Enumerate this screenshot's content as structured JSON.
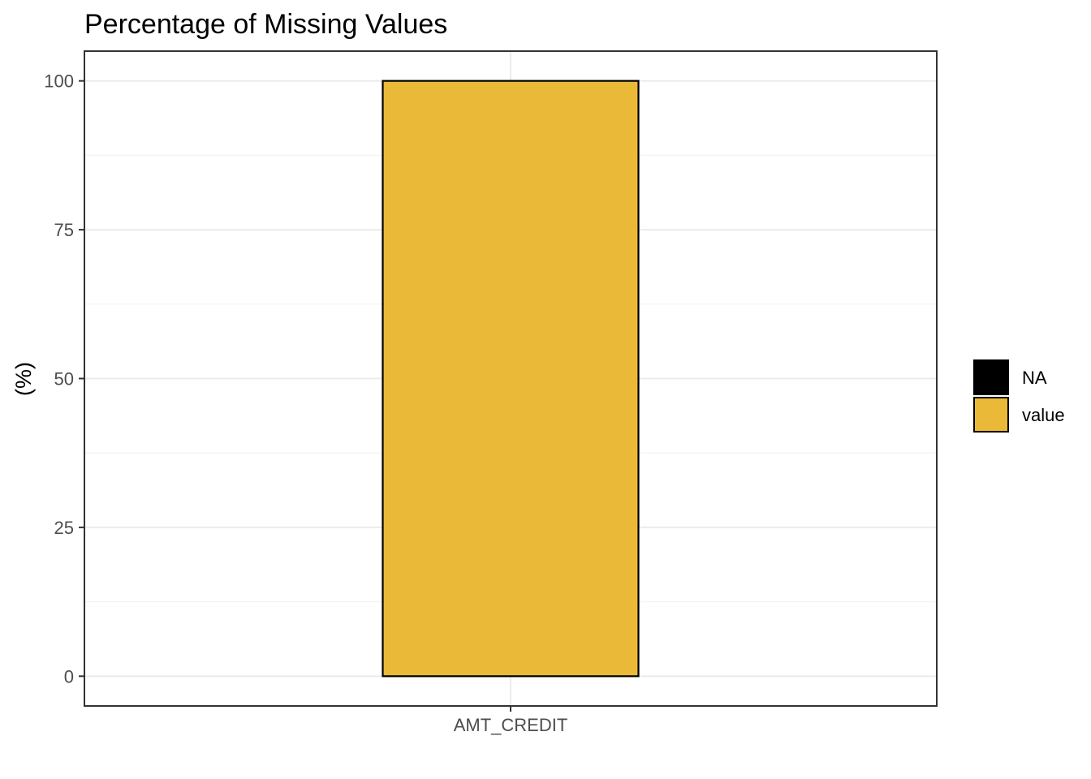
{
  "chart_data": {
    "type": "bar",
    "title": "Percentage of Missing Values",
    "xlabel": "",
    "ylabel": "(%)",
    "categories": [
      "AMT_CREDIT"
    ],
    "series": [
      {
        "name": "NA",
        "values": [
          0
        ],
        "color": "#000000"
      },
      {
        "name": "value",
        "values": [
          100
        ],
        "color": "#EBB938"
      }
    ],
    "ylim": [
      -5,
      105
    ],
    "yticks": [
      0,
      25,
      50,
      75,
      100
    ],
    "grid": true,
    "legend_position": "right",
    "legend": [
      "NA",
      "value"
    ]
  }
}
